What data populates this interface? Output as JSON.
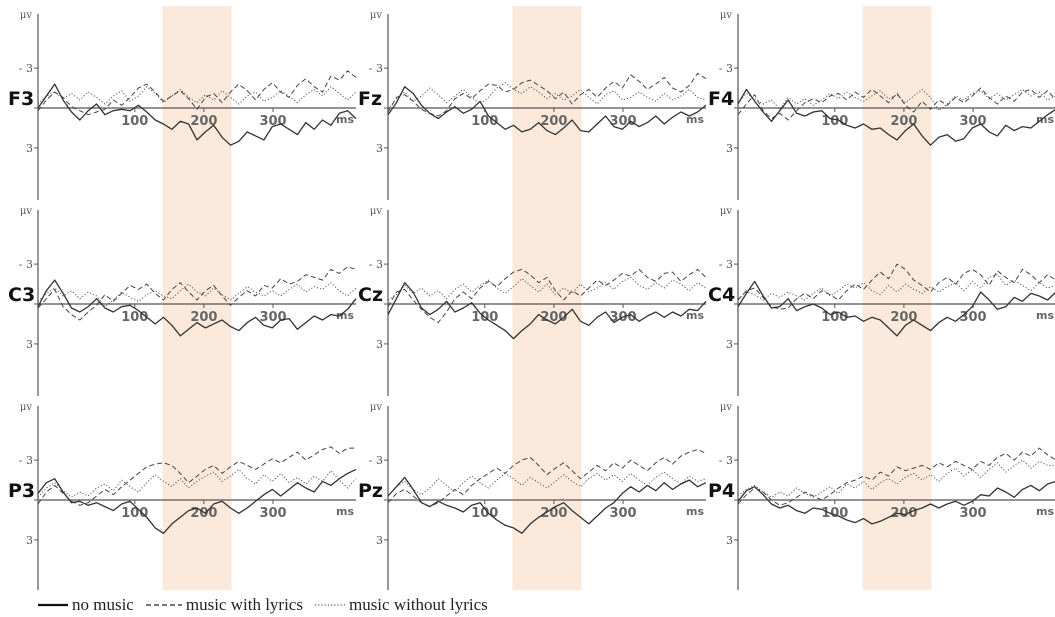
{
  "chart_data": {
    "type": "line",
    "layout": "3x3 grid of ERP waveform panels",
    "y_axis_unit": "μv",
    "y_axis_orientation": "negative up",
    "y_ticks": [
      "- 3",
      "0",
      "3"
    ],
    "x_axis_unit": "ms",
    "x_ticks": [
      100,
      200,
      300
    ],
    "xlim": [
      -40,
      420
    ],
    "ylim": [
      -6,
      6
    ],
    "highlight_window_ms": [
      140,
      240
    ],
    "highlight_color": "#fbeadc",
    "series_styles": [
      {
        "name": "no music",
        "dash": "solid"
      },
      {
        "name": "music with lyrics",
        "dash": "dashed"
      },
      {
        "name": "music without lyrics",
        "dash": "dotted"
      }
    ],
    "panels": [
      {
        "electrode": "F3",
        "no_music": [
          0,
          -0.9,
          -1.8,
          -0.6,
          0.3,
          0.9,
          0.2,
          -0.3,
          0.5,
          0.2,
          0.1,
          0.2,
          -0.2,
          0.3,
          0.9,
          1.2,
          1.6,
          1.0,
          1.2,
          2.4,
          1.8,
          1.3,
          2.2,
          2.8,
          2.5,
          1.8,
          2.1,
          2.4,
          1.4,
          1.2,
          1.6,
          2.0,
          1.1,
          1.6,
          0.9,
          1.3,
          0.4,
          0.2,
          0.8
        ],
        "music_with_lyrics": [
          0.2,
          -0.6,
          -1.2,
          -0.8,
          -0.1,
          0.2,
          0.5,
          0.3,
          0.1,
          -0.6,
          -0.2,
          -0.8,
          -1.5,
          -1.8,
          -1.2,
          -0.5,
          -0.9,
          -1.3,
          -0.7,
          0.1,
          -0.8,
          -1.1,
          -0.4,
          -1.2,
          -1.8,
          -1.3,
          -0.6,
          -1.4,
          -1.9,
          -1.2,
          -0.8,
          -1.7,
          -2.2,
          -1.6,
          -1.2,
          -2.4,
          -2.1,
          -2.8,
          -2.3
        ],
        "music_without_lyrics": [
          -0.3,
          -0.9,
          -1.2,
          -0.7,
          -1.1,
          -0.6,
          -1.2,
          -0.8,
          -0.3,
          -0.9,
          -1.3,
          -0.5,
          -0.9,
          -1.6,
          -1.1,
          -0.4,
          -0.9,
          -1.4,
          -0.8,
          -0.4,
          -1.0,
          -0.6,
          -1.3,
          -0.8,
          -0.3,
          -0.9,
          -1.2,
          -0.5,
          -0.8,
          -1.3,
          -0.9,
          -0.4,
          -1.0,
          -1.4,
          -0.9,
          -1.6,
          -1.1,
          -0.6,
          -1.2
        ]
      },
      {
        "electrode": "Fz",
        "no_music": [
          0.5,
          -0.4,
          -1.6,
          -1.1,
          -0.2,
          0.4,
          0.8,
          0.3,
          -0.1,
          0.4,
          0.1,
          -0.5,
          0.6,
          1.1,
          1.6,
          1.3,
          1.8,
          1.6,
          1.1,
          1.7,
          2.0,
          1.5,
          0.9,
          1.7,
          1.8,
          1.2,
          0.6,
          1.4,
          1.6,
          1.0,
          1.4,
          1.1,
          0.6,
          1.2,
          0.7,
          0.3,
          0.6,
          0.3,
          -0.2
        ],
        "music_with_lyrics": [
          0.3,
          -0.8,
          -1.0,
          -0.5,
          0.1,
          0.4,
          0.6,
          0.2,
          -0.7,
          -1.1,
          -0.7,
          -1.3,
          -1.8,
          -1.7,
          -1.2,
          -1.4,
          -1.9,
          -2.1,
          -1.7,
          -1.3,
          -0.7,
          -1.2,
          -0.3,
          -1.0,
          -1.4,
          -0.8,
          -1.5,
          -2.0,
          -1.5,
          -2.5,
          -2.0,
          -1.4,
          -1.8,
          -2.3,
          -1.5,
          -1.2,
          -1.7,
          -2.6,
          -2.2
        ],
        "music_without_lyrics": [
          0.1,
          -0.7,
          -1.2,
          -0.5,
          -0.9,
          -1.5,
          -1.0,
          -0.4,
          -0.9,
          -1.4,
          -0.8,
          -0.3,
          -0.8,
          -1.5,
          -1.9,
          -1.4,
          -1.1,
          -1.6,
          -1.2,
          -0.7,
          -1.1,
          -0.6,
          -0.9,
          -1.4,
          -0.8,
          -0.3,
          -1.0,
          -1.3,
          -0.6,
          -0.8,
          -1.2,
          -0.8,
          -0.5,
          -1.1,
          -0.6,
          -0.9,
          -1.4,
          -0.8,
          -0.6
        ]
      },
      {
        "electrode": "F4",
        "no_music": [
          -0.3,
          -1.4,
          -0.5,
          0.3,
          1.0,
          0.2,
          -0.6,
          0.4,
          0.6,
          0.3,
          0.2,
          0.8,
          0.9,
          1.3,
          1.5,
          1.2,
          1.6,
          1.5,
          2.0,
          2.4,
          1.7,
          1.2,
          2.1,
          2.8,
          2.2,
          2.0,
          2.5,
          2.3,
          1.5,
          1.2,
          1.8,
          2.1,
          1.3,
          1.7,
          1.4,
          1.5,
          1.0,
          0.5,
          0.1
        ],
        "music_with_lyrics": [
          0.5,
          -0.3,
          -1.0,
          0.2,
          0.8,
          0.4,
          0.9,
          0.2,
          -0.4,
          -0.7,
          -0.4,
          -0.9,
          -1.1,
          -0.6,
          -1.2,
          -0.8,
          -1.4,
          -0.9,
          -0.4,
          -1.1,
          -0.2,
          0.3,
          -0.5,
          0.1,
          -0.6,
          -0.2,
          -0.8,
          -0.4,
          -0.9,
          -1.5,
          -0.8,
          -0.3,
          -0.9,
          -0.5,
          -1.2,
          -1.4,
          -0.8,
          -1.3,
          -0.6
        ],
        "music_without_lyrics": [
          -0.4,
          -1.1,
          -0.7,
          -0.3,
          -0.6,
          0.1,
          -0.8,
          -0.3,
          -0.7,
          -0.2,
          -0.6,
          -1.1,
          -0.7,
          -1.2,
          -0.8,
          -0.5,
          -0.9,
          -1.3,
          -0.7,
          -1.0,
          -0.4,
          -0.9,
          -1.4,
          -0.8,
          0.2,
          -0.3,
          -0.9,
          -0.6,
          -1.1,
          -1.3,
          -0.7,
          -1.1,
          -0.6,
          -1.0,
          -1.4,
          -0.9,
          -1.2,
          -0.6,
          -0.9
        ]
      },
      {
        "electrode": "C3",
        "no_music": [
          0.2,
          -1.0,
          -1.8,
          -0.8,
          0.3,
          0.6,
          0.2,
          -0.4,
          0.3,
          0.6,
          0.2,
          0.1,
          0.5,
          1.0,
          1.5,
          1.0,
          1.6,
          2.4,
          1.9,
          1.4,
          1.8,
          1.5,
          1.2,
          1.7,
          2.0,
          1.4,
          1.0,
          1.6,
          1.8,
          1.2,
          1.1,
          1.9,
          1.4,
          0.9,
          1.2,
          0.8,
          0.9,
          0.4,
          -0.4
        ],
        "music_with_lyrics": [
          0.3,
          -0.4,
          -1.1,
          0.2,
          0.8,
          1.2,
          0.6,
          0.1,
          -0.7,
          -0.2,
          -0.8,
          -1.4,
          -1.1,
          -1.5,
          -0.8,
          -0.3,
          -1.1,
          -1.6,
          -0.9,
          -0.3,
          -1.0,
          -1.4,
          -0.6,
          0.1,
          -0.5,
          -1.0,
          -0.6,
          -1.4,
          -1.2,
          -1.9,
          -1.5,
          -1.7,
          -2.2,
          -2.0,
          -1.8,
          -2.6,
          -2.3,
          -2.8,
          -2.6
        ],
        "music_without_lyrics": [
          -0.2,
          -0.8,
          -1.2,
          -0.6,
          -1.0,
          -0.4,
          -0.9,
          -0.6,
          0.2,
          -0.3,
          -0.9,
          -0.5,
          -0.2,
          -0.7,
          -1.0,
          -0.6,
          -0.4,
          -1.0,
          -1.5,
          -0.9,
          -0.6,
          -1.2,
          -0.7,
          -0.3,
          -0.8,
          -1.3,
          -0.9,
          -0.6,
          -1.0,
          -0.6,
          -1.1,
          -1.5,
          -0.9,
          -1.3,
          -1.1,
          -1.6,
          -1.0,
          -0.6,
          -1.2
        ]
      },
      {
        "electrode": "Cz",
        "no_music": [
          0.8,
          -0.4,
          -1.6,
          -0.9,
          0.3,
          0.8,
          0.4,
          -0.2,
          0.6,
          0.3,
          -0.1,
          0.7,
          1.2,
          1.6,
          2.0,
          2.6,
          2.0,
          1.5,
          0.8,
          1.2,
          1.5,
          1.0,
          0.4,
          1.3,
          1.6,
          1.0,
          0.6,
          1.4,
          1.0,
          0.8,
          1.3,
          0.9,
          0.6,
          1.0,
          0.6,
          0.9,
          0.4,
          0.5,
          -0.2
        ],
        "music_with_lyrics": [
          0.2,
          -0.9,
          -1.1,
          -0.3,
          0.4,
          1.0,
          1.4,
          0.6,
          -0.4,
          -0.9,
          -0.4,
          -1.2,
          -1.7,
          -1.3,
          -1.9,
          -2.4,
          -2.6,
          -2.2,
          -1.6,
          -2.0,
          -1.0,
          -0.3,
          -1.0,
          -0.6,
          -1.2,
          -1.8,
          -1.4,
          -1.8,
          -2.3,
          -2.1,
          -2.6,
          -2.0,
          -1.7,
          -2.3,
          -2.4,
          -1.7,
          -2.2,
          -2.6,
          -2.0
        ],
        "music_without_lyrics": [
          -0.3,
          -0.7,
          -1.4,
          -0.8,
          -1.2,
          -0.6,
          -1.0,
          -0.4,
          -1.1,
          -1.5,
          -0.9,
          -1.4,
          -1.8,
          -1.2,
          -0.8,
          -1.3,
          -1.9,
          -1.4,
          -0.9,
          -1.5,
          -0.7,
          -1.2,
          -0.8,
          -1.5,
          -0.9,
          -1.2,
          -1.6,
          -1.1,
          -1.7,
          -2.0,
          -1.4,
          -1.1,
          -1.6,
          -1.2,
          -1.8,
          -1.5,
          -1.0,
          -1.6,
          -1.2
        ]
      },
      {
        "electrode": "C4",
        "no_music": [
          0.2,
          -0.8,
          -1.7,
          -0.6,
          0.3,
          0.2,
          -0.4,
          0.5,
          0.2,
          0.0,
          0.3,
          0.8,
          0.6,
          1.0,
          0.9,
          1.3,
          1.0,
          1.2,
          1.8,
          2.4,
          1.6,
          1.2,
          1.6,
          2.0,
          1.4,
          1.0,
          1.3,
          0.8,
          0.2,
          -0.9,
          -0.3,
          0.4,
          0.2,
          -0.5,
          -0.2,
          -0.8,
          -0.6,
          -0.3,
          -0.9
        ],
        "music_with_lyrics": [
          -0.3,
          -1.0,
          -1.2,
          -0.5,
          0.2,
          0.4,
          0.3,
          -0.4,
          -0.8,
          -0.4,
          -1.0,
          -0.7,
          -0.3,
          -1.0,
          -1.5,
          -1.1,
          -1.8,
          -2.4,
          -1.9,
          -3.0,
          -2.6,
          -1.8,
          -1.4,
          -0.9,
          -1.6,
          -2.0,
          -1.5,
          -2.3,
          -2.6,
          -2.2,
          -1.4,
          -2.5,
          -2.0,
          -1.6,
          -2.6,
          -2.2,
          -1.6,
          -2.2,
          -1.8
        ],
        "music_without_lyrics": [
          -0.4,
          -0.9,
          -0.7,
          -0.3,
          -0.8,
          -0.5,
          -0.9,
          -0.6,
          -0.3,
          -0.8,
          -1.2,
          -0.6,
          -1.0,
          -1.5,
          -1.2,
          -1.6,
          -1.0,
          -0.7,
          -1.4,
          -0.9,
          -1.5,
          -1.1,
          -0.8,
          -1.3,
          -0.9,
          -1.3,
          -1.6,
          -1.0,
          -1.7,
          -1.2,
          -2.0,
          -2.2,
          -1.4,
          -1.8,
          -1.4,
          -1.0,
          -1.6,
          -1.2,
          -1.4
        ]
      },
      {
        "electrode": "P3",
        "no_music": [
          -0.5,
          -1.3,
          -1.6,
          -0.6,
          0.2,
          0.1,
          0.4,
          0.2,
          0.5,
          0.8,
          0.3,
          0.1,
          0.7,
          1.3,
          2.1,
          2.5,
          1.8,
          1.3,
          0.8,
          0.6,
          1.0,
          0.3,
          0.1,
          0.6,
          1.0,
          0.6,
          0.1,
          -0.4,
          -0.8,
          -0.3,
          -0.8,
          -1.3,
          -0.9,
          -0.6,
          -1.4,
          -1.1,
          -1.6,
          -2.0,
          -2.3
        ],
        "music_with_lyrics": [
          0.3,
          -0.6,
          -1.1,
          -0.5,
          0.1,
          0.4,
          0.2,
          -0.3,
          -0.8,
          -0.4,
          -1.0,
          -1.5,
          -2.0,
          -2.5,
          -2.7,
          -2.8,
          -2.6,
          -2.0,
          -1.3,
          -1.8,
          -2.3,
          -2.6,
          -2.0,
          -2.5,
          -2.9,
          -2.6,
          -2.3,
          -2.7,
          -3.1,
          -2.8,
          -3.2,
          -3.6,
          -3.0,
          -3.4,
          -3.8,
          -4.0,
          -3.5,
          -3.9,
          -3.9
        ],
        "music_without_lyrics": [
          -0.2,
          -0.9,
          -1.3,
          -0.7,
          -0.2,
          -0.6,
          -0.3,
          -0.9,
          -1.2,
          -0.7,
          -1.5,
          -1.0,
          -0.6,
          -1.3,
          -1.9,
          -1.4,
          -1.0,
          -1.6,
          -0.9,
          -1.4,
          -1.8,
          -2.1,
          -1.4,
          -1.8,
          -2.3,
          -1.6,
          -1.2,
          -1.9,
          -1.4,
          -2.0,
          -1.3,
          -1.7,
          -1.2,
          -1.8,
          -1.4,
          -2.2,
          -1.5,
          -0.9,
          -1.6
        ]
      },
      {
        "electrode": "Pz",
        "no_music": [
          -0.3,
          -1.0,
          -1.7,
          -0.8,
          0.2,
          0.5,
          0.1,
          0.4,
          0.6,
          0.9,
          0.4,
          0.2,
          1.0,
          1.5,
          1.9,
          2.1,
          2.5,
          1.8,
          1.3,
          0.9,
          0.5,
          0.2,
          0.8,
          1.3,
          1.8,
          1.2,
          0.6,
          0.2,
          -0.5,
          -1.0,
          -0.6,
          -1.1,
          -0.7,
          -1.3,
          -0.8,
          -1.2,
          -1.5,
          -1.0,
          -1.3
        ],
        "music_with_lyrics": [
          0.2,
          -0.5,
          -0.8,
          -0.3,
          0.2,
          0.5,
          0.2,
          -0.3,
          -0.8,
          -0.4,
          -1.1,
          -1.6,
          -2.0,
          -2.4,
          -2.0,
          -2.6,
          -3.0,
          -3.2,
          -2.6,
          -1.9,
          -2.4,
          -2.8,
          -2.2,
          -1.6,
          -2.1,
          -2.6,
          -2.2,
          -2.8,
          -2.4,
          -3.0,
          -2.6,
          -2.2,
          -2.8,
          -3.2,
          -2.7,
          -3.3,
          -3.6,
          -3.8,
          -3.5
        ],
        "music_without_lyrics": [
          -0.3,
          -1.0,
          -1.4,
          -0.8,
          -0.4,
          -0.9,
          -1.6,
          -1.1,
          -0.6,
          -1.3,
          -1.8,
          -1.3,
          -0.9,
          -1.5,
          -2.0,
          -1.6,
          -1.1,
          -1.7,
          -1.3,
          -0.9,
          -1.4,
          -1.9,
          -1.4,
          -1.0,
          -1.6,
          -2.0,
          -1.5,
          -1.9,
          -1.4,
          -2.0,
          -1.5,
          -1.1,
          -1.7,
          -2.1,
          -1.6,
          -1.2,
          -1.8,
          -1.4,
          -1.6
        ]
      },
      {
        "electrode": "P4",
        "no_music": [
          0.1,
          -0.7,
          -1.0,
          -0.4,
          0.3,
          0.6,
          0.4,
          0.8,
          1.0,
          0.6,
          0.7,
          1.0,
          1.2,
          1.5,
          1.7,
          1.4,
          1.8,
          1.6,
          1.3,
          1.0,
          1.1,
          0.8,
          0.6,
          0.3,
          0.6,
          0.3,
          0.1,
          0.4,
          0.1,
          -0.4,
          -0.3,
          -0.9,
          -0.6,
          -0.2,
          -0.8,
          -1.1,
          -0.7,
          -1.2,
          -1.4
        ],
        "music_with_lyrics": [
          0.3,
          -0.4,
          -0.9,
          -0.6,
          0.0,
          0.4,
          0.2,
          -0.2,
          -0.6,
          -0.3,
          0.0,
          -0.4,
          -0.9,
          -1.3,
          -1.5,
          -1.8,
          -1.5,
          -2.1,
          -1.8,
          -2.5,
          -2.2,
          -2.4,
          -2.6,
          -2.3,
          -2.8,
          -2.5,
          -2.9,
          -2.6,
          -2.3,
          -2.9,
          -2.6,
          -3.2,
          -3.5,
          -3.0,
          -3.6,
          -3.3,
          -3.9,
          -3.4,
          -3.0
        ],
        "music_without_lyrics": [
          -0.3,
          -0.8,
          -1.1,
          -0.6,
          -0.2,
          -0.6,
          -0.3,
          -0.9,
          -0.5,
          -0.2,
          -0.6,
          -1.0,
          -0.5,
          -1.2,
          -0.9,
          -1.4,
          -0.8,
          -1.3,
          -1.6,
          -1.2,
          -1.7,
          -2.0,
          -1.5,
          -1.9,
          -1.4,
          -2.0,
          -2.4,
          -1.8,
          -2.3,
          -1.7,
          -2.3,
          -2.8,
          -2.1,
          -2.6,
          -3.0,
          -2.4,
          -2.9,
          -2.6,
          -2.6
        ]
      }
    ],
    "legend": [
      {
        "label": "no music",
        "style": "solid"
      },
      {
        "label": "music with lyrics",
        "style": "dashed"
      },
      {
        "label": "music without lyrics",
        "style": "dotted"
      }
    ]
  }
}
